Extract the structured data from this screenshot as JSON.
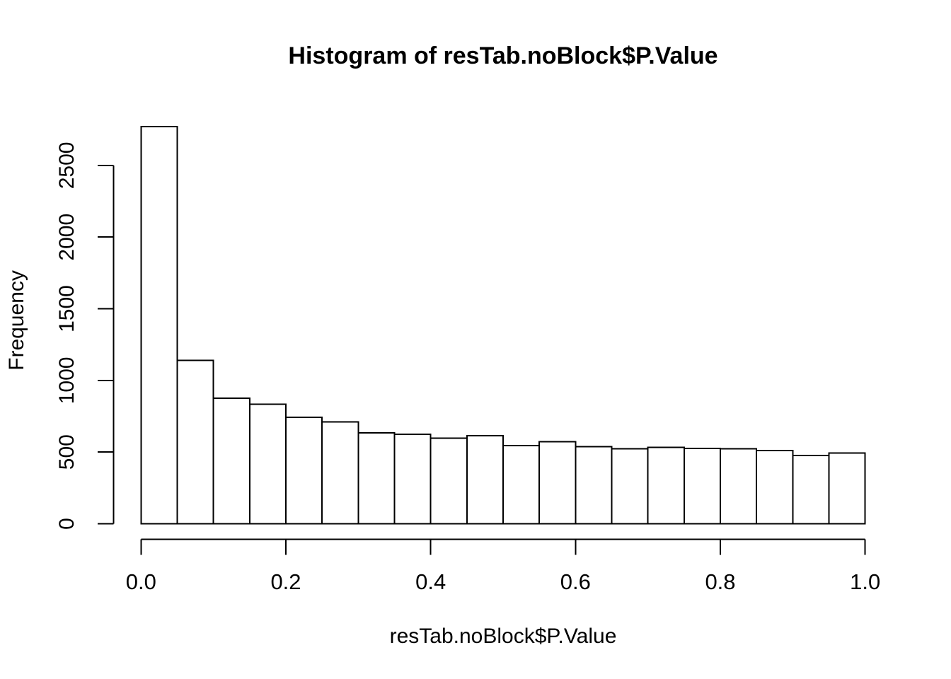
{
  "chart_data": {
    "type": "bar",
    "subtype": "histogram",
    "title": "Histogram of resTab.noBlock$P.Value",
    "xlabel": "resTab.noBlock$P.Value",
    "ylabel": "Frequency",
    "bin_edges": [
      0.0,
      0.05,
      0.1,
      0.15,
      0.2,
      0.25,
      0.3,
      0.35,
      0.4,
      0.45,
      0.5,
      0.55,
      0.6,
      0.65,
      0.7,
      0.75,
      0.8,
      0.85,
      0.9,
      0.95,
      1.0
    ],
    "values": [
      2770,
      1141,
      875,
      833,
      742,
      710,
      634,
      625,
      598,
      614,
      545,
      573,
      537,
      522,
      532,
      526,
      524,
      511,
      475,
      493
    ],
    "x_ticks": [
      0.0,
      0.2,
      0.4,
      0.6,
      0.8,
      1.0
    ],
    "x_tick_labels": [
      "0.0",
      "0.2",
      "0.4",
      "0.6",
      "0.8",
      "1.0"
    ],
    "y_ticks": [
      0,
      500,
      1000,
      1500,
      2000,
      2500
    ],
    "y_tick_labels": [
      "0",
      "500",
      "1000",
      "1500",
      "2000",
      "2500"
    ],
    "xlim": [
      0.0,
      1.0
    ],
    "ylim": [
      0,
      2500
    ],
    "grid": false,
    "legend": false,
    "bar_fill": "#ffffff",
    "bar_stroke": "#000000",
    "axis_color": "#000000",
    "background": "#ffffff"
  }
}
